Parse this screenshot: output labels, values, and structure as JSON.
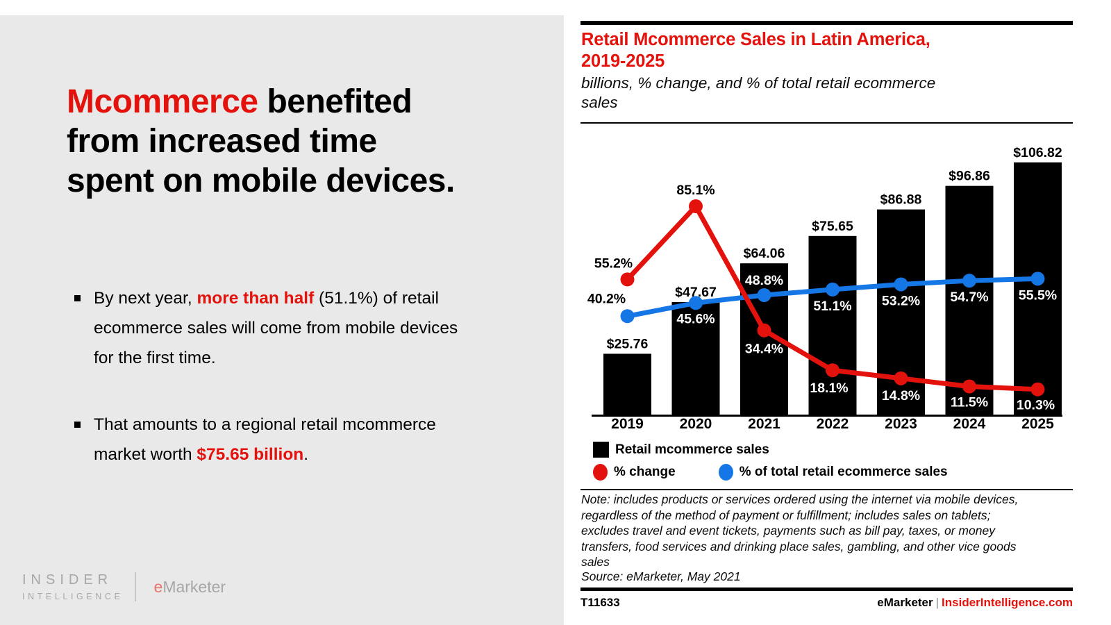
{
  "left_panel": {
    "heading_lines": [
      [
        {
          "t": "Mcommerce",
          "red": true
        },
        {
          "t": " benefited",
          "red": false
        }
      ],
      [
        {
          "t": "from increased time",
          "red": false
        }
      ],
      [
        {
          "t": "spent on mobile devices.",
          "red": false
        }
      ]
    ],
    "bullets": [
      [
        {
          "t": "By next year, ",
          "red": false
        },
        {
          "t": "more than half",
          "red": true
        },
        {
          "t": " (51.1%) of retail ecommerce sales will come from mobile devices for the first time.",
          "red": false
        }
      ],
      [
        {
          "t": "That amounts to a regional retail mcommerce market worth ",
          "red": false
        },
        {
          "t": "$75.65 billion",
          "red": true
        },
        {
          "t": ".",
          "red": false
        }
      ]
    ],
    "logo": {
      "insider_line1": "INSIDER",
      "insider_line2": "INTELLIGENCE",
      "emarketer_e": "e",
      "emarketer_rest": "Marketer"
    }
  },
  "chart_panel": {
    "title_lines": [
      "Retail Mcommerce Sales in Latin America,",
      "2019-2025"
    ],
    "subtitle_lines": [
      "billions, % change, and % of total retail ecommerce",
      "sales"
    ],
    "legend": [
      {
        "swatch": "square",
        "color": "#000000",
        "label": "Retail mcommerce sales"
      },
      {
        "swatch": "circle",
        "color": "#e3120c",
        "label": "% change"
      },
      {
        "swatch": "circle",
        "color": "#1577e6",
        "label": "% of total retail ecommerce sales"
      }
    ],
    "note_lines": [
      "Note: includes products or services ordered using the internet via mobile devices,",
      "regardless of the method of payment or fulfillment; includes sales on tablets;",
      "excludes travel and event tickets, payments such as bill pay, taxes, or money",
      "transfers, food services and drinking place sales, gambling, and other vice goods",
      "sales"
    ],
    "source": "Source: eMarketer, May 2021",
    "footer_id": "T11633",
    "footer_brand": "eMarketer",
    "footer_sep": "|",
    "footer_site": "InsiderIntelligence.com"
  },
  "chart_data": {
    "type": "bar",
    "subtype": "bar-with-two-lines",
    "categories": [
      "2019",
      "2020",
      "2021",
      "2022",
      "2023",
      "2024",
      "2025"
    ],
    "series": [
      {
        "name": "Retail mcommerce sales",
        "type": "bar",
        "unit": "billions USD",
        "color": "#000000",
        "values": [
          25.76,
          47.67,
          64.06,
          75.65,
          86.88,
          96.86,
          106.82
        ]
      },
      {
        "name": "% change",
        "type": "line",
        "unit": "%",
        "color": "#e3120c",
        "values": [
          55.2,
          85.1,
          34.4,
          18.1,
          14.8,
          11.5,
          10.3
        ]
      },
      {
        "name": "% of total retail ecommerce sales",
        "type": "line",
        "unit": "%",
        "color": "#1577e6",
        "values": [
          40.2,
          45.6,
          48.8,
          51.1,
          53.2,
          54.7,
          55.5
        ]
      }
    ],
    "title": "Retail Mcommerce Sales in Latin America, 2019-2025",
    "xlabel": "",
    "ylabel": "",
    "ylim_bars": [
      0,
      120
    ],
    "ylim_pct": [
      0,
      115
    ],
    "grid": false,
    "legend_position": "bottom",
    "bar_label_format": "$#.##",
    "line_label_format": "#.#%"
  },
  "colors": {
    "brand_red": "#e3120c",
    "line_blue": "#1577e6",
    "bar_black": "#000000",
    "panel_gray": "#e9e9e9",
    "logo_gray": "#a7a7a7",
    "logo_salmon": "#e8756b",
    "footer_sep_gray": "#8a8a8a"
  }
}
